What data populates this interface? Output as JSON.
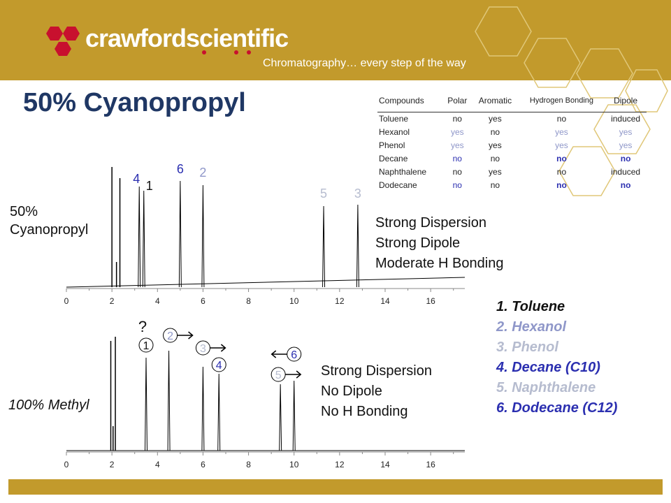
{
  "header": {
    "brand": "crawfordscientific",
    "tagline": "Chromatography… every step of the way"
  },
  "slide_title": "50% Cyanopropyl",
  "colors": {
    "gold": "#c29a2c",
    "navy": "#1f3764",
    "light_blue": "#8f97c9",
    "dark_blue": "#2b2fb0",
    "light_gray": "#b6bccf"
  },
  "table": {
    "headers": [
      "Compounds",
      "Polar",
      "Aromatic",
      "Hydrogen Bonding",
      "Dipole"
    ],
    "rows": [
      [
        "Toluene",
        "no",
        "yes",
        "no",
        "induced"
      ],
      [
        "Hexanol",
        "yes",
        "no",
        "yes",
        "yes"
      ],
      [
        "Phenol",
        "yes",
        "yes",
        "yes",
        "yes"
      ],
      [
        "Decane",
        "no",
        "no",
        "no",
        "no"
      ],
      [
        "Naphthalene",
        "no",
        "yes",
        "no",
        "induced"
      ],
      [
        "Dodecane",
        "no",
        "no",
        "no",
        "no"
      ]
    ]
  },
  "charts": {
    "top_label": "50% Cyanopropyl",
    "bottom_label": "100% Methyl",
    "question_mark": "?"
  },
  "descriptions": {
    "top": [
      "Strong Dispersion",
      "Strong Dipole",
      "Moderate H Bonding"
    ],
    "bottom": [
      "Strong Dispersion",
      "No Dipole",
      "No H Bonding"
    ]
  },
  "legend": [
    "1. Toluene",
    "2. Hexanol",
    "3. Phenol",
    "4. Decane (C10)",
    "5. Naphthalene",
    "6. Dodecane (C12)"
  ],
  "chart_data": [
    {
      "type": "line",
      "title": "50% Cyanopropyl",
      "xlim": [
        0,
        17.5
      ],
      "x_ticks": [
        0,
        2,
        4,
        6,
        8,
        10,
        12,
        14,
        16
      ],
      "peaks": [
        {
          "label": "4",
          "rt": 3.2
        },
        {
          "label": "1",
          "rt": 3.4
        },
        {
          "label": "6",
          "rt": 5.0
        },
        {
          "label": "2",
          "rt": 6.0
        },
        {
          "label": "5",
          "rt": 11.3
        },
        {
          "label": "3",
          "rt": 12.8
        }
      ]
    },
    {
      "type": "line",
      "title": "100% Methyl",
      "xlim": [
        0,
        17.5
      ],
      "x_ticks": [
        0,
        2,
        4,
        6,
        8,
        10,
        12,
        14,
        16
      ],
      "peaks": [
        {
          "label": "1",
          "rt": 3.5
        },
        {
          "label": "2",
          "rt": 4.5
        },
        {
          "label": "3",
          "rt": 6.0
        },
        {
          "label": "4",
          "rt": 6.7
        },
        {
          "label": "5",
          "rt": 9.4
        },
        {
          "label": "6",
          "rt": 10.0
        }
      ]
    }
  ]
}
